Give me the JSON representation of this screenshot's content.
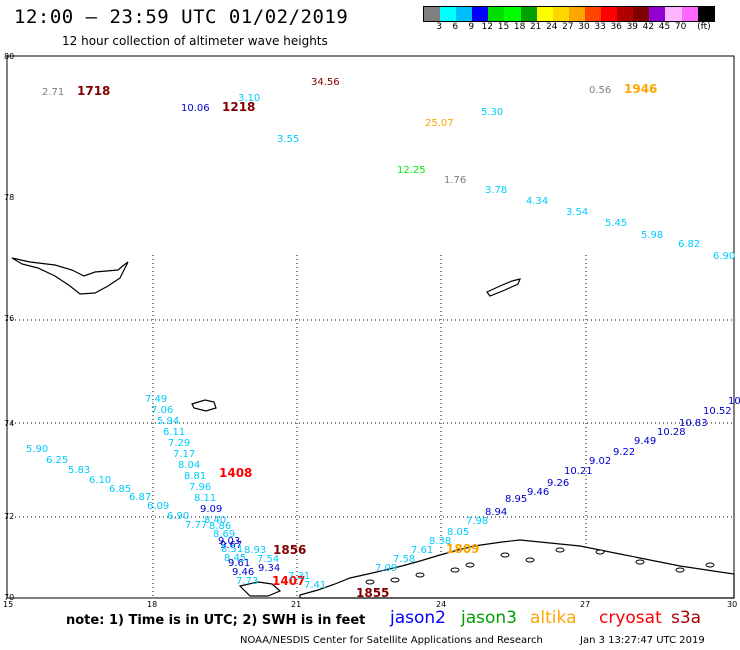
{
  "header": {
    "title": "12:00 — 23:59 UTC 01/02/2019",
    "subtitle": "12 hour collection of altimeter wave heights"
  },
  "colorbar": {
    "colors": [
      "#7f7f7f",
      "#00ffff",
      "#00bfff",
      "#0000ff",
      "#00dd00",
      "#00ff00",
      "#00a000",
      "#ffff00",
      "#ffd700",
      "#ffa500",
      "#ff4500",
      "#ff0000",
      "#b00000",
      "#800000",
      "#9400d3",
      "#ffb6ff",
      "#ff66ff",
      "#000000"
    ],
    "ticks": [
      "3",
      "6",
      "9",
      "12",
      "15",
      "18",
      "21",
      "24",
      "27",
      "30",
      "33",
      "36",
      "39",
      "42",
      "45",
      "70"
    ],
    "unit": "(ft)"
  },
  "axes": {
    "y_ticks": [
      "80",
      "78",
      "76",
      "74",
      "72",
      "70"
    ],
    "x_ticks": [
      "15",
      "18",
      "21",
      "24",
      "27",
      "30"
    ]
  },
  "times": [
    {
      "text": "1718",
      "color": "#800000"
    },
    {
      "text": "1218",
      "color": "#800000"
    },
    {
      "text": "1946",
      "color": "#ffa500"
    },
    {
      "text": "1408",
      "color": "#ff0000"
    },
    {
      "text": "1856",
      "color": "#800000"
    },
    {
      "text": "1809",
      "color": "#ffa500"
    },
    {
      "text": "1407",
      "color": "#ff0000"
    },
    {
      "text": "1855",
      "color": "#800000"
    }
  ],
  "wave_heights": [
    {
      "v": "2.71",
      "c": "#7f7f7f"
    },
    {
      "v": "10.06",
      "c": "#0000cc"
    },
    {
      "v": "3.10",
      "c": "#00ccff"
    },
    {
      "v": "34.56",
      "c": "#800000"
    },
    {
      "v": "3.55",
      "c": "#00ccff"
    },
    {
      "v": "0.56",
      "c": "#7f7f7f"
    },
    {
      "v": "5.30",
      "c": "#00ccff"
    },
    {
      "v": "25.07",
      "c": "#ffa500"
    },
    {
      "v": "12.25",
      "c": "#00ee00"
    },
    {
      "v": "1.76",
      "c": "#7f7f7f"
    },
    {
      "v": "3.78",
      "c": "#00ccff"
    },
    {
      "v": "4.34",
      "c": "#00ccff"
    },
    {
      "v": "3.54",
      "c": "#00ccff"
    },
    {
      "v": "5.45",
      "c": "#00ccff"
    },
    {
      "v": "5.98",
      "c": "#00ccff"
    },
    {
      "v": "6.82",
      "c": "#00ccff"
    },
    {
      "v": "6.90",
      "c": "#00ccff"
    },
    {
      "v": "7.49",
      "c": "#00ccff"
    },
    {
      "v": "7.06",
      "c": "#00ccff"
    },
    {
      "v": "5.94",
      "c": "#00ccff"
    },
    {
      "v": "6.11",
      "c": "#00ccff"
    },
    {
      "v": "7.29",
      "c": "#00ccff"
    },
    {
      "v": "7.17",
      "c": "#00ccff"
    },
    {
      "v": "8.04",
      "c": "#00ccff"
    },
    {
      "v": "8.81",
      "c": "#00ccff"
    },
    {
      "v": "7.96",
      "c": "#00ccff"
    },
    {
      "v": "8.11",
      "c": "#00ccff"
    },
    {
      "v": "9.09",
      "c": "#0000cc"
    },
    {
      "v": "8.40",
      "c": "#00ccff"
    },
    {
      "v": "7.77",
      "c": "#00ccff"
    },
    {
      "v": "8.86",
      "c": "#00ccff"
    },
    {
      "v": "8.69",
      "c": "#00ccff"
    },
    {
      "v": "9.03",
      "c": "#0000cc"
    },
    {
      "v": "9.67",
      "c": "#0000cc"
    },
    {
      "v": "8.51",
      "c": "#00ccff"
    },
    {
      "v": "8.93",
      "c": "#00ccff"
    },
    {
      "v": "8.45",
      "c": "#00ccff"
    },
    {
      "v": "7.54",
      "c": "#00ccff"
    },
    {
      "v": "9.61",
      "c": "#0000cc"
    },
    {
      "v": "9.34",
      "c": "#0000cc"
    },
    {
      "v": "9.46",
      "c": "#0000cc"
    },
    {
      "v": "7.73",
      "c": "#00ccff"
    },
    {
      "v": "7.31",
      "c": "#00ccff"
    },
    {
      "v": "7.41",
      "c": "#00ccff"
    },
    {
      "v": "5.90",
      "c": "#00ccff"
    },
    {
      "v": "6.25",
      "c": "#00ccff"
    },
    {
      "v": "5.83",
      "c": "#00ccff"
    },
    {
      "v": "6.10",
      "c": "#00ccff"
    },
    {
      "v": "6.85",
      "c": "#00ccff"
    },
    {
      "v": "6.87",
      "c": "#00ccff"
    },
    {
      "v": "6.09",
      "c": "#00ccff"
    },
    {
      "v": "6.90",
      "c": "#00ccff"
    },
    {
      "v": "7.09",
      "c": "#00ccff"
    },
    {
      "v": "7.58",
      "c": "#00ccff"
    },
    {
      "v": "7.61",
      "c": "#00ccff"
    },
    {
      "v": "8.38",
      "c": "#00ccff"
    },
    {
      "v": "8.05",
      "c": "#00ccff"
    },
    {
      "v": "7.98",
      "c": "#00ccff"
    },
    {
      "v": "8.94",
      "c": "#0000cc"
    },
    {
      "v": "8.95",
      "c": "#0000cc"
    },
    {
      "v": "9.46",
      "c": "#0000cc"
    },
    {
      "v": "9.26",
      "c": "#0000cc"
    },
    {
      "v": "10.21",
      "c": "#0000cc"
    },
    {
      "v": "9.02",
      "c": "#0000cc"
    },
    {
      "v": "9.22",
      "c": "#0000cc"
    },
    {
      "v": "9.49",
      "c": "#0000cc"
    },
    {
      "v": "10.28",
      "c": "#0000cc"
    },
    {
      "v": "10.83",
      "c": "#0000cc"
    },
    {
      "v": "10.52",
      "c": "#0000cc"
    },
    {
      "v": "10",
      "c": "#0000cc"
    }
  ],
  "footer": {
    "note": "note:  1) Time is in UTC;  2) SWH is in feet",
    "legend": [
      {
        "label": "jason2",
        "color": "#0000ff"
      },
      {
        "label": "jason3",
        "color": "#00a000"
      },
      {
        "label": "altika",
        "color": "#ffa500"
      },
      {
        "label": "cryosat",
        "color": "#ff0000"
      },
      {
        "label": "s3a",
        "color": "#b00000"
      }
    ],
    "credit": "NOAA/NESDIS Center for Satellite Applications and Research",
    "timestamp": "Jan  3 13:27:47 UTC 2019"
  }
}
